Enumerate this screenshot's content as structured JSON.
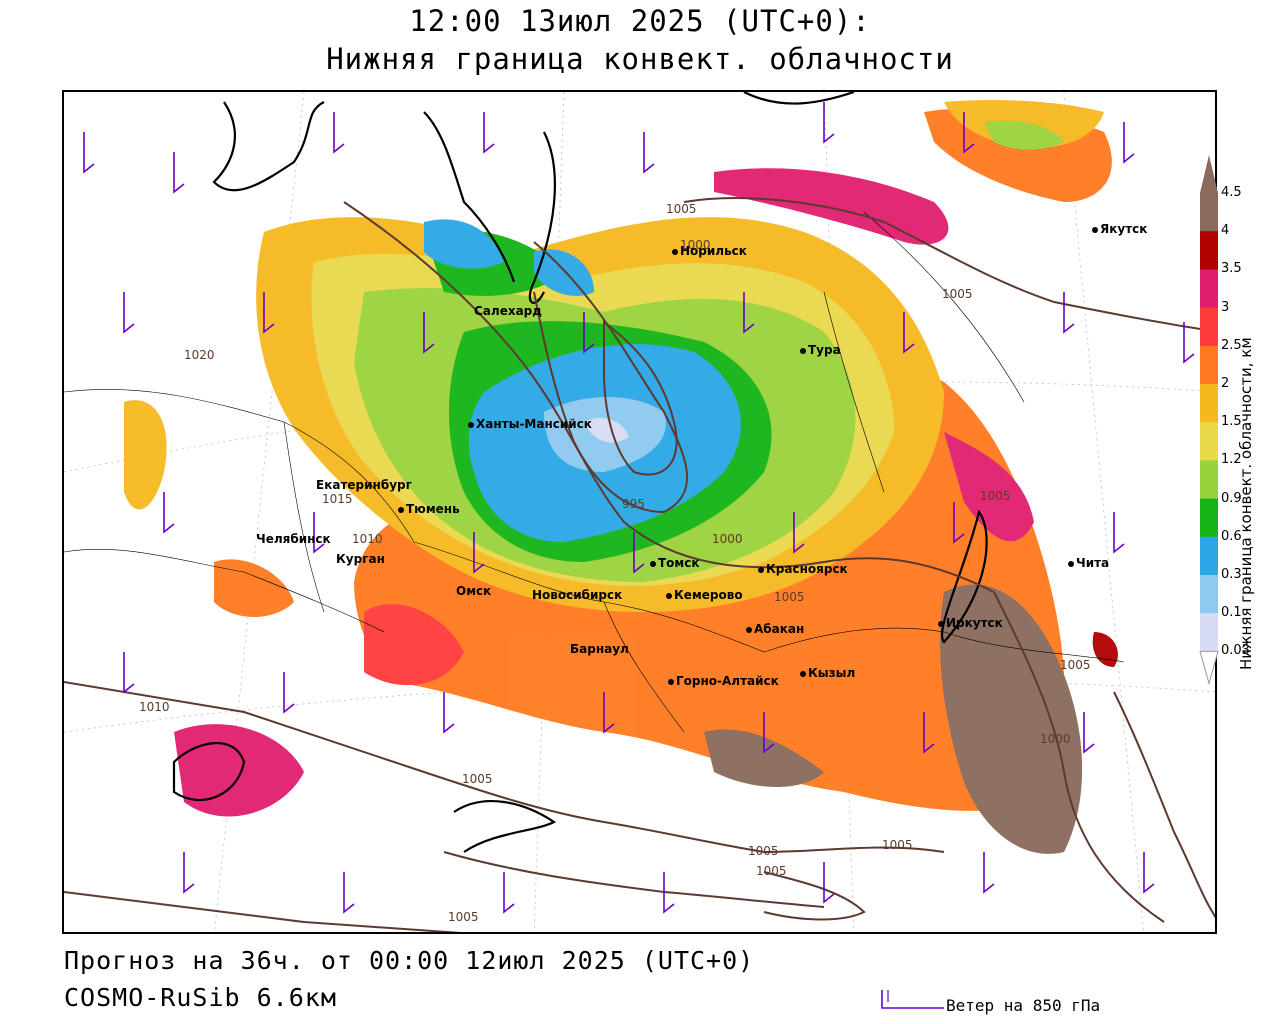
{
  "header": {
    "title_line1": "12:00 13июл 2025 (UTC+0):",
    "title_line2": "Нижняя граница конвект. облачности"
  },
  "footer": {
    "forecast": "Прогноз на 36ч. от 00:00 12июл 2025 (UTC+0)",
    "model": "COSMO-RuSib 6.6км",
    "wind_legend": "Ветер на 850 гПа"
  },
  "colorbar": {
    "title": "Нижняя граница конвект. облачности, км",
    "ticks": [
      "4.5",
      "4",
      "3.5",
      "3",
      "2.5",
      "2",
      "1.5",
      "1.2",
      "0.9",
      "0.6",
      "0.3",
      "0.1",
      "0.03"
    ],
    "colors": [
      "#8a6a5c",
      "#b00000",
      "#e01e6e",
      "#ff3a3a",
      "#ff7a1e",
      "#f5b81e",
      "#e8d84a",
      "#9ad23a",
      "#14b414",
      "#2aa6e6",
      "#8ccaf0",
      "#d6dcf4"
    ],
    "arrow_color": "#8a6a5c"
  },
  "cities": [
    {
      "name": "Якутск"
    },
    {
      "name": "Норильск"
    },
    {
      "name": "Салехард"
    },
    {
      "name": "Тура"
    },
    {
      "name": "Ханты-Мансийск"
    },
    {
      "name": "Екатеринбург"
    },
    {
      "name": "Тюмень"
    },
    {
      "name": "Челябинск"
    },
    {
      "name": "Курган"
    },
    {
      "name": "Омск"
    },
    {
      "name": "Новосибирск"
    },
    {
      "name": "Томск"
    },
    {
      "name": "Кемерово"
    },
    {
      "name": "Красноярск"
    },
    {
      "name": "Абакан"
    },
    {
      "name": "Барнаул"
    },
    {
      "name": "Горно-Алтайск"
    },
    {
      "name": "Кызыл"
    },
    {
      "name": "Иркутск"
    },
    {
      "name": "Чита"
    }
  ],
  "isobars": [
    "1005",
    "1005",
    "1005",
    "1000",
    "995",
    "1000",
    "1005",
    "1010",
    "1015",
    "1020",
    "1010",
    "1005",
    "1005",
    "1005",
    "1005",
    "1005",
    "1005",
    "1000",
    "1005"
  ],
  "palette": {
    "isobar": "#5c3a30",
    "wind": "#6a00c8",
    "border": "#000000"
  }
}
